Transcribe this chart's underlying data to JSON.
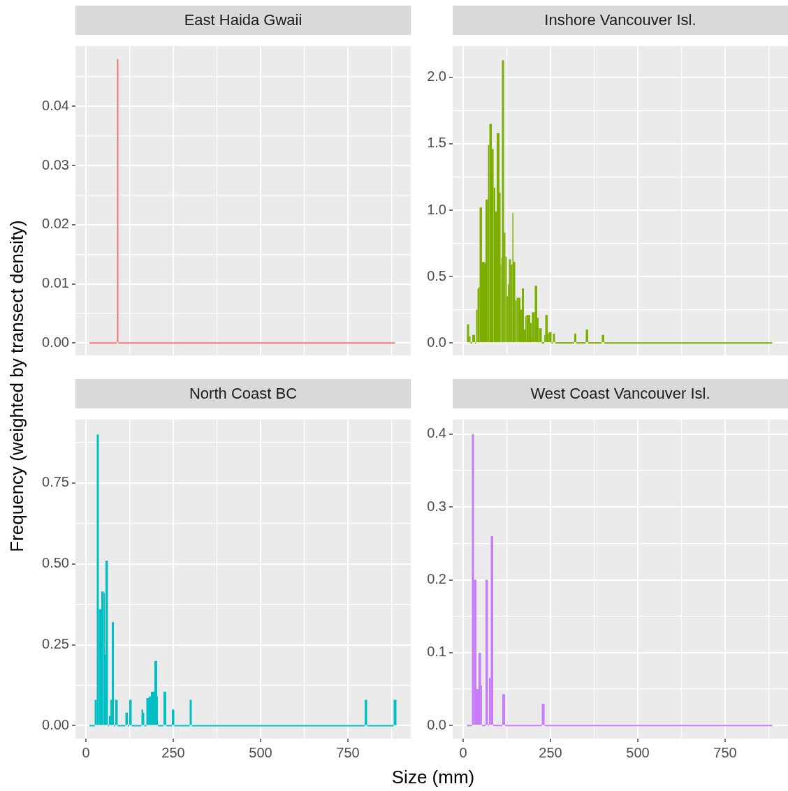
{
  "chart_data": [
    {
      "type": "histogram",
      "title": "East Haida Gwaii",
      "ylabel": "Frequency (weighted by transect density)",
      "color": "#f8766d",
      "bins": [
        10,
        89,
        93,
        885
      ],
      "values": [
        0,
        0.048,
        0
      ],
      "xlim": [
        -30,
        930
      ],
      "xticks": [
        0,
        {
          "value": 125,
          "label": null
        },
        250,
        {
          "value": 375,
          "label": null
        },
        500,
        {
          "value": 625,
          "label": null
        },
        750,
        {
          "value": 875,
          "label": null
        }
      ],
      "ylim": [
        -0.0021,
        0.0502
      ],
      "yticks": [
        {
          "value": 0,
          "label": "0.00"
        },
        {
          "value": 0.005,
          "label": null
        },
        {
          "value": 0.01,
          "label": "0.01"
        },
        {
          "value": 0.015,
          "label": null
        },
        {
          "value": 0.02,
          "label": "0.02"
        },
        {
          "value": 0.025,
          "label": null
        },
        {
          "value": 0.03,
          "label": "0.03"
        },
        {
          "value": 0.035,
          "label": null
        },
        {
          "value": 0.04,
          "label": "0.04"
        },
        {
          "value": 0.045,
          "label": null
        }
      ],
      "grid": true,
      "tick_labels": "y"
    },
    {
      "type": "histogram",
      "title": "Inshore Vancouver Isl.",
      "color": "#7cae00",
      "bins": [
        11,
        17,
        21,
        26,
        34,
        37,
        41,
        44,
        47,
        54,
        62,
        64,
        71,
        75,
        82,
        87,
        92,
        96,
        104,
        107,
        109,
        111,
        117,
        121,
        125,
        128,
        131,
        137,
        141,
        144,
        149,
        153,
        157,
        164,
        168,
        174,
        178,
        181,
        188,
        192,
        196,
        197,
        205,
        212,
        216,
        217,
        225,
        232,
        235,
        242,
        245,
        253,
        257,
        263,
        318,
        324,
        351,
        358,
        397,
        404,
        885
      ],
      "values": [
        0.14,
        0.05,
        0,
        0.06,
        0,
        0.25,
        0.41,
        0.42,
        1.02,
        0.61,
        0.6,
        1.08,
        1.49,
        1.65,
        1.46,
        1.17,
        0.99,
        1.58,
        1.13,
        0.59,
        0.64,
        2.13,
        0.83,
        0.65,
        0.35,
        0.44,
        0.63,
        0.59,
        0.98,
        0.61,
        0.32,
        0.34,
        0.34,
        0.25,
        0.41,
        0.1,
        0.2,
        0.21,
        0.21,
        0.15,
        0.05,
        0.23,
        0.43,
        0.19,
        0,
        0.11,
        0,
        0.06,
        0.21,
        0.07,
        0.08,
        0,
        0.07,
        0,
        0.07,
        0,
        0.1,
        0,
        0.06,
        0
      ],
      "xlim": [
        -30,
        930
      ],
      "xticks": [
        0,
        {
          "value": 125,
          "label": null
        },
        250,
        {
          "value": 375,
          "label": null
        },
        500,
        {
          "value": 625,
          "label": null
        },
        750,
        {
          "value": 875,
          "label": null
        }
      ],
      "ylim": [
        -0.094,
        2.236
      ],
      "yticks": [
        {
          "value": 0,
          "label": "0.0"
        },
        {
          "value": 0.25,
          "label": null
        },
        {
          "value": 0.5,
          "label": "0.5"
        },
        {
          "value": 0.75,
          "label": null
        },
        {
          "value": 1,
          "label": "1.0"
        },
        {
          "value": 1.25,
          "label": null
        },
        {
          "value": 1.5,
          "label": "1.5"
        },
        {
          "value": 1.75,
          "label": null
        },
        {
          "value": 2,
          "label": "2.0"
        }
      ],
      "grid": true,
      "tick_labels": "y"
    },
    {
      "type": "histogram",
      "title": "North Coast BC",
      "xlabel": "Size (mm)",
      "color": "#00bfc4",
      "bins": [
        10,
        25,
        31,
        37,
        44,
        51,
        54,
        56,
        63,
        66,
        70,
        74,
        80,
        84,
        91,
        113,
        120,
        124,
        131,
        159,
        164,
        167,
        173,
        180,
        186,
        196,
        204,
        206,
        222,
        230,
        246,
        253,
        297,
        303,
        798,
        805,
        881,
        889
      ],
      "values": [
        0,
        0.08,
        0.9,
        0.36,
        0.415,
        0.41,
        0.22,
        0.51,
        0,
        0.03,
        0.08,
        0.32,
        0,
        0.08,
        0,
        0.04,
        0,
        0.08,
        0,
        0.05,
        0.04,
        0,
        0.085,
        0.09,
        0.105,
        0.2,
        0.09,
        0,
        0.105,
        0,
        0.05,
        0,
        0.08,
        0,
        0.08,
        0,
        0.08
      ],
      "xlim": [
        -30,
        930
      ],
      "xticks": [
        0,
        {
          "value": 125,
          "label": null
        },
        250,
        {
          "value": 375,
          "label": null
        },
        500,
        {
          "value": 625,
          "label": null
        },
        750,
        {
          "value": 875,
          "label": null
        }
      ],
      "ylim": [
        -0.04,
        0.946
      ],
      "yticks": [
        {
          "value": 0,
          "label": "0.00"
        },
        {
          "value": 0.125,
          "label": null
        },
        {
          "value": 0.25,
          "label": "0.25"
        },
        {
          "value": 0.375,
          "label": null
        },
        {
          "value": 0.5,
          "label": "0.50"
        },
        {
          "value": 0.625,
          "label": null
        },
        {
          "value": 0.75,
          "label": "0.75"
        },
        {
          "value": 0.875,
          "label": null
        }
      ],
      "grid": true
    },
    {
      "type": "histogram",
      "title": "West Coast Vancouver Isl.",
      "color": "#c77cff",
      "bins": [
        11,
        25,
        31,
        38,
        44,
        51,
        54,
        64,
        71,
        74,
        79,
        86,
        112,
        120,
        225,
        233,
        885
      ],
      "values": [
        0,
        0.4,
        0.2,
        0.05,
        0.1,
        0.055,
        0,
        0.2,
        0,
        0.065,
        0.26,
        0,
        0.043,
        0,
        0.03,
        0
      ],
      "xlim": [
        -30,
        930
      ],
      "xticks": [
        0,
        {
          "value": 125,
          "label": null
        },
        250,
        {
          "value": 375,
          "label": null
        },
        500,
        {
          "value": 625,
          "label": null
        },
        750,
        {
          "value": 875,
          "label": null
        }
      ],
      "ylim": [
        -0.018,
        0.42
      ],
      "yticks": [
        {
          "value": 0,
          "label": "0.0"
        },
        {
          "value": 0.05,
          "label": null
        },
        {
          "value": 0.1,
          "label": "0.1"
        },
        {
          "value": 0.15,
          "label": null
        },
        {
          "value": 0.2,
          "label": "0.2"
        },
        {
          "value": 0.25,
          "label": null
        },
        {
          "value": 0.3,
          "label": "0.3"
        },
        {
          "value": 0.35,
          "label": null
        },
        {
          "value": 0.4,
          "label": "0.4"
        }
      ],
      "grid": true
    }
  ]
}
